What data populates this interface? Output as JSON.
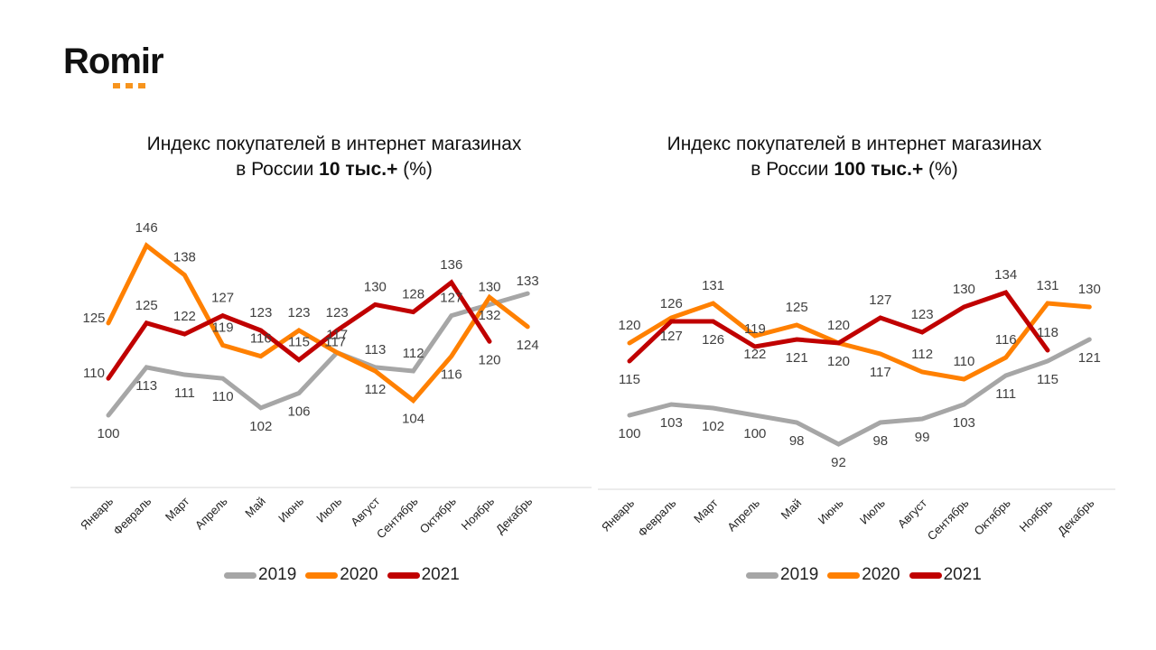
{
  "logo": {
    "text": "Romir",
    "dots_color": "#f7941d"
  },
  "months": [
    "Январь",
    "Февраль",
    "Март",
    "Апрель",
    "Май",
    "Июнь",
    "Июль",
    "Август",
    "Сентябрь",
    "Октябрь",
    "Ноябрь",
    "Декабрь"
  ],
  "legend": [
    {
      "label": "2019",
      "color": "#a6a6a6"
    },
    {
      "label": "2020",
      "color": "#ff8000"
    },
    {
      "label": "2021",
      "color": "#c00000"
    }
  ],
  "chart_data": [
    {
      "type": "line",
      "title_line1": "Индекс покупателей в интернет магазинах",
      "title_line2_prefix": "в России ",
      "title_line2_bold": "10 тыс.+",
      "title_line2_suffix": " (%)",
      "categories": [
        "Январь",
        "Февраль",
        "Март",
        "Апрель",
        "Май",
        "Июнь",
        "Июль",
        "Август",
        "Сентябрь",
        "Октябрь",
        "Ноябрь",
        "Декабрь"
      ],
      "ylim": [
        95,
        150
      ],
      "grid": false,
      "legend_position": "bottom",
      "series": [
        {
          "name": "2019",
          "color": "#a6a6a6",
          "values": [
            100,
            113,
            111,
            110,
            102,
            106,
            117,
            113,
            112,
            127,
            130,
            133
          ]
        },
        {
          "name": "2020",
          "color": "#ff8000",
          "values": [
            125,
            146,
            138,
            119,
            116,
            123,
            117,
            112,
            104,
            116,
            132,
            124
          ]
        },
        {
          "name": "2021",
          "color": "#c00000",
          "values": [
            110,
            125,
            122,
            127,
            123,
            115,
            123,
            130,
            128,
            136,
            120
          ]
        }
      ]
    },
    {
      "type": "line",
      "title_line1": "Индекс покупателей в интернет магазинах",
      "title_line2_prefix": "в России ",
      "title_line2_bold": "100 тыс.+",
      "title_line2_suffix": " (%)",
      "categories": [
        "Январь",
        "Февраль",
        "Март",
        "Апрель",
        "Май",
        "Июнь",
        "Июль",
        "Август",
        "Сентябрь",
        "Октябрь",
        "Ноябрь",
        "Декабрь"
      ],
      "ylim": [
        85,
        140
      ],
      "grid": false,
      "legend_position": "bottom",
      "series": [
        {
          "name": "2019",
          "color": "#a6a6a6",
          "values": [
            100,
            103,
            102,
            100,
            98,
            92,
            98,
            99,
            103,
            111,
            115,
            121
          ]
        },
        {
          "name": "2020",
          "color": "#ff8000",
          "values": [
            120,
            127,
            131,
            122,
            125,
            120,
            117,
            112,
            110,
            116,
            131,
            130
          ]
        },
        {
          "name": "2021",
          "color": "#c00000",
          "values": [
            115,
            126,
            126,
            119,
            121,
            120,
            127,
            123,
            130,
            134,
            118
          ]
        }
      ]
    }
  ]
}
